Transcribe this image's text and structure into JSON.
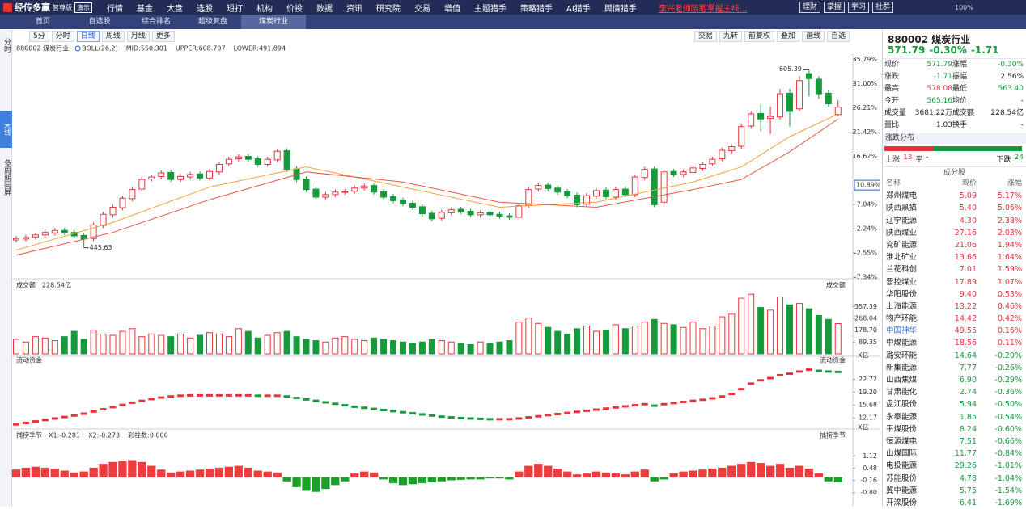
{
  "nav": {
    "logo": "经传多赢",
    "edition": "智尊版",
    "demo": "演示",
    "menu": [
      "行情",
      "基金",
      "大盘",
      "选股",
      "短打",
      "机构",
      "价投",
      "数据",
      "资讯",
      "研究院",
      "交易",
      "增值",
      "主题猎手",
      "策略猎手",
      "AI猎手",
      "舆情猎手"
    ],
    "promo": "李兴老师陪跑掌握主线...",
    "right": [
      "理财",
      "掌握",
      "学习",
      "社群"
    ],
    "zoom": "100%"
  },
  "tabs": [
    "首页",
    "自选股",
    "综合排名",
    "超级复盘",
    "煤炭行业"
  ],
  "side_tabs": [
    "分时",
    "K线",
    "多周期同屏"
  ],
  "toolbar": {
    "left": [
      "5分",
      "分时",
      "日线",
      "周线",
      "月线",
      "更多"
    ],
    "right": [
      "交易",
      "九转",
      "前复权",
      "叠加",
      "画线",
      "自选"
    ]
  },
  "chart_data": [
    {
      "type": "candlestick",
      "title": "880002 煤炭行业",
      "indicator": "BOLL(26,2)",
      "legend": [
        {
          "text": "MID:550.301",
          "color": "#333333"
        },
        {
          "text": "UPPER:608.707",
          "color": "#f08a00"
        },
        {
          "text": "LOWER:491.894",
          "color": "#e01fd0"
        }
      ],
      "up_color": "#e8333a",
      "down_color": "#169a3c",
      "open": [
        0.0,
        0.2,
        0.6,
        1.0,
        1.4,
        1.9,
        1.5,
        0.9,
        0.3,
        2.9,
        5.0,
        6.4,
        8.2,
        10.1,
        12.1,
        12.6,
        13.4,
        12.0,
        12.5,
        13.1,
        12.3,
        13.5,
        15.1,
        16.1,
        16.6,
        16.1,
        15.0,
        15.9,
        17.7,
        14.1,
        12.1,
        10.1,
        8.5,
        9.0,
        9.5,
        9.7,
        10.3,
        10.8,
        9.6,
        8.6,
        7.9,
        7.3,
        6.6,
        5.3,
        4.3,
        5.4,
        6.1,
        5.7,
        5.0,
        5.5,
        5.1,
        4.8,
        4.5,
        6.9,
        10.1,
        10.9,
        10.3,
        9.6,
        8.9,
        7.1,
        8.7,
        9.9,
        8.5,
        10.1,
        9.0,
        12.4,
        14.1,
        7.5,
        13.6,
        13.0,
        13.4,
        14.2,
        15.1,
        16.1,
        17.7,
        18.6,
        22.6,
        25.1,
        24.1,
        24.4,
        29.1,
        26.0,
        33.0,
        31.9,
        29.1,
        24.87
      ],
      "high": [
        0.8,
        1.0,
        1.5,
        2.0,
        2.4,
        2.4,
        2.0,
        1.4,
        3.5,
        5.6,
        7.0,
        8.8,
        10.5,
        12.5,
        13.0,
        13.8,
        13.9,
        13.1,
        13.5,
        13.6,
        14.1,
        15.5,
        16.5,
        17.0,
        17.1,
        16.6,
        16.5,
        18.1,
        18.2,
        14.6,
        12.6,
        10.6,
        9.5,
        10.0,
        10.1,
        10.8,
        11.2,
        11.3,
        10.1,
        9.1,
        8.4,
        7.8,
        7.1,
        5.8,
        6.0,
        6.5,
        6.6,
        6.2,
        5.9,
        6.0,
        5.6,
        5.3,
        7.3,
        10.5,
        11.3,
        11.4,
        10.8,
        10.1,
        9.4,
        9.3,
        10.3,
        10.4,
        10.5,
        10.6,
        13.0,
        14.5,
        14.6,
        14.0,
        14.1,
        14.0,
        14.8,
        15.5,
        16.5,
        18.3,
        19.0,
        23.0,
        25.5,
        27.0,
        26.5,
        30.0,
        30.0,
        32.5,
        33.76,
        32.5,
        29.6,
        27.72
      ],
      "low": [
        -0.5,
        -0.3,
        0.1,
        0.5,
        0.9,
        1.0,
        0.3,
        -1.54,
        -0.2,
        2.4,
        4.5,
        5.9,
        7.7,
        9.6,
        11.6,
        12.1,
        11.5,
        11.5,
        12.0,
        11.8,
        11.8,
        13.0,
        14.6,
        15.6,
        15.5,
        14.5,
        14.5,
        15.4,
        13.5,
        11.5,
        9.5,
        8.0,
        8.0,
        8.5,
        9.0,
        9.2,
        9.8,
        9.0,
        8.0,
        7.3,
        6.7,
        6.0,
        4.7,
        3.7,
        3.8,
        4.9,
        5.1,
        4.5,
        4.5,
        4.5,
        4.2,
        4.0,
        4.0,
        6.4,
        9.6,
        9.7,
        9.0,
        8.3,
        6.5,
        6.6,
        8.2,
        8.1,
        8.0,
        8.5,
        8.5,
        11.9,
        6.5,
        7.0,
        12.5,
        12.5,
        12.9,
        13.7,
        14.6,
        15.6,
        17.2,
        18.1,
        22.1,
        21.5,
        21.0,
        23.9,
        22.5,
        25.5,
        28.5,
        28.0,
        26.5,
        24.48
      ],
      "close": [
        0.3,
        0.5,
        1.0,
        1.5,
        1.9,
        1.5,
        0.8,
        0.2,
        3.0,
        5.1,
        6.5,
        8.3,
        10.0,
        12.0,
        12.5,
        13.3,
        12.0,
        12.6,
        13.0,
        12.3,
        13.6,
        15.0,
        16.0,
        16.5,
        16.0,
        15.0,
        16.0,
        17.6,
        14.0,
        12.0,
        10.0,
        8.5,
        9.0,
        9.5,
        9.6,
        10.3,
        10.7,
        9.5,
        8.5,
        7.8,
        7.2,
        6.5,
        5.2,
        4.2,
        5.5,
        6.0,
        5.6,
        5.0,
        5.4,
        5.0,
        4.7,
        4.5,
        6.8,
        10.0,
        10.8,
        10.2,
        9.5,
        8.8,
        7.0,
        8.8,
        9.8,
        8.6,
        10.0,
        9.0,
        12.5,
        14.0,
        7.0,
        13.5,
        13.0,
        13.5,
        14.3,
        15.0,
        16.0,
        17.8,
        18.5,
        22.5,
        25.0,
        24.0,
        24.5,
        29.0,
        25.5,
        31.6,
        32.0,
        29.0,
        27.0,
        26.33
      ],
      "overlays": [
        {
          "color": "#f2a23a",
          "x": [
            0,
            10,
            20,
            30,
            40,
            50,
            60,
            70,
            75,
            80,
            85
          ],
          "values": [
            -2.0,
            3.5,
            10.5,
            14.5,
            10.5,
            6.5,
            7.5,
            11.5,
            14.5,
            20.5,
            25.0
          ]
        },
        {
          "color": "#e8574a",
          "x": [
            0,
            10,
            20,
            30,
            40,
            50,
            60,
            70,
            75,
            80,
            85
          ],
          "values": [
            -3.0,
            1.5,
            8.0,
            13.5,
            11.5,
            7.5,
            6.5,
            10.0,
            12.0,
            17.5,
            24.0
          ]
        }
      ],
      "annotations": [
        "605.39",
        "445.63"
      ],
      "cursor": {
        "value": 10.89,
        "label": "10.89%"
      },
      "ylim": [
        -7.68,
        36.7
      ],
      "yticks": [
        {
          "value": 35.79,
          "label": "35.79%"
        },
        {
          "value": 31.0,
          "label": "31.00%"
        },
        {
          "value": 26.21,
          "label": "26.21%"
        },
        {
          "value": 21.42,
          "label": "21.42%"
        },
        {
          "value": 16.62,
          "label": "16.62%"
        },
        {
          "value": 7.04,
          "label": "7.04%"
        },
        {
          "value": 2.24,
          "label": "2.24%"
        },
        {
          "value": -2.55,
          "label": "-2.55%"
        },
        {
          "value": -7.34,
          "label": "-7.34%"
        }
      ]
    },
    {
      "type": "bar",
      "title": "成交额",
      "subtitle": "228.54亿",
      "unit": "X亿",
      "values": [
        110,
        90,
        130,
        120,
        100,
        130,
        170,
        110,
        180,
        150,
        140,
        170,
        190,
        130,
        150,
        140,
        130,
        150,
        120,
        140,
        160,
        150,
        130,
        190,
        170,
        120,
        140,
        160,
        170,
        130,
        110,
        100,
        90,
        120,
        130,
        110,
        100,
        120,
        110,
        100,
        90,
        80,
        90,
        110,
        100,
        90,
        80,
        70,
        90,
        80,
        90,
        100,
        240,
        270,
        230,
        200,
        170,
        150,
        190,
        210,
        170,
        180,
        220,
        190,
        210,
        240,
        260,
        230,
        220,
        200,
        240,
        190,
        210,
        280,
        300,
        420,
        450,
        350,
        330,
        430,
        370,
        380,
        340,
        290,
        260,
        228.54
      ],
      "ylim": [
        0,
        524
      ],
      "yticks": [
        357.39,
        268.04,
        {
          "value": 178.7,
          "label": "178.70"
        },
        89.35
      ]
    },
    {
      "type": "line",
      "title": "流动资金",
      "unit": "X亿",
      "values": [
        10.4,
        10.8,
        11.2,
        11.6,
        12.0,
        12.4,
        12.8,
        13.3,
        13.9,
        14.5,
        15.1,
        15.7,
        16.3,
        16.8,
        17.3,
        17.7,
        18.0,
        18.2,
        18.3,
        18.3,
        18.3,
        18.3,
        18.3,
        18.3,
        18.3,
        18.2,
        18.2,
        18.2,
        18.0,
        17.6,
        17.2,
        16.8,
        16.4,
        16.0,
        15.6,
        15.2,
        14.9,
        14.6,
        14.3,
        14.0,
        13.7,
        13.4,
        13.1,
        12.8,
        12.5,
        12.3,
        12.1,
        12.0,
        11.9,
        11.8,
        11.8,
        11.8,
        12.0,
        12.3,
        12.6,
        12.9,
        13.2,
        13.5,
        13.8,
        14.1,
        14.4,
        14.7,
        15.0,
        15.3,
        15.6,
        15.9,
        15.5,
        15.9,
        16.2,
        16.5,
        16.8,
        17.1,
        17.5,
        18.0,
        18.7,
        20.0,
        21.5,
        22.4,
        23.0,
        23.8,
        24.2,
        24.8,
        25.3,
        25.0,
        24.8,
        24.7
      ],
      "up_color": "#e8333a",
      "down_color": "#169a3c",
      "ylim": [
        10.0,
        27.2
      ],
      "yticks": [
        22.72,
        {
          "value": 19.2,
          "label": "19.20"
        },
        15.68,
        12.17
      ]
    },
    {
      "type": "bar",
      "title": "捕捞季节",
      "legend": [
        {
          "text": "X1:-0.281",
          "color": "#f08a00"
        },
        {
          "text": "X2:-0.273",
          "color": "#e01fd0"
        },
        {
          "text": "彩柱数:0.000",
          "color": "#169a3c"
        }
      ],
      "up_color": "#ef3b3b",
      "down_color": "#1aa12a",
      "values": [
        0.4,
        0.5,
        0.55,
        0.5,
        0.45,
        0.35,
        0.25,
        0.3,
        0.5,
        0.7,
        0.8,
        0.85,
        0.9,
        0.8,
        0.6,
        0.4,
        0.25,
        0.3,
        0.35,
        0.4,
        0.45,
        0.5,
        0.55,
        0.6,
        0.5,
        0.35,
        0.3,
        0.25,
        -0.2,
        -0.5,
        -0.7,
        -0.75,
        -0.6,
        -0.4,
        -0.2,
        0.2,
        0.3,
        0.25,
        -0.1,
        -0.3,
        -0.4,
        -0.35,
        -0.3,
        -0.25,
        -0.2,
        -0.15,
        -0.12,
        -0.1,
        -0.1,
        -0.05,
        -0.05,
        -0.1,
        0.3,
        0.6,
        0.7,
        0.6,
        0.45,
        0.3,
        0.15,
        0.2,
        0.3,
        0.25,
        0.2,
        0.15,
        0.3,
        0.4,
        -0.2,
        -0.1,
        0.2,
        0.3,
        0.35,
        0.4,
        0.45,
        0.5,
        0.6,
        0.7,
        0.8,
        0.75,
        0.6,
        0.7,
        0.5,
        0.6,
        0.45,
        0.2,
        -0.2,
        -0.25
      ],
      "ylim": [
        -1.32,
        2.07
      ],
      "yticks": [
        1.12,
        0.48,
        -0.16,
        {
          "value": -0.8,
          "label": "-0.80"
        }
      ]
    }
  ],
  "quote": {
    "code": "880002 煤炭行业",
    "price": "571.79",
    "change_pct": "-0.30%",
    "change": "-1.71",
    "rows": [
      [
        "现价",
        "571.79",
        "涨幅",
        "-0.30%"
      ],
      [
        "涨跌",
        "-1.71",
        "振幅",
        "2.56%"
      ],
      [
        "最高",
        "578.08",
        "最低",
        "563.40"
      ],
      [
        "今开",
        "565.16",
        "均价",
        "-"
      ],
      [
        "成交量",
        "3681.22万",
        "成交额",
        "228.54亿"
      ],
      [
        "量比",
        "1.03",
        "换手",
        "-"
      ]
    ],
    "dist_title": "涨跌分布",
    "up_label": "上涨",
    "up": 13,
    "flat_label": "平",
    "flat": "-",
    "down_label": "下跌",
    "down": 24
  },
  "constituents": {
    "title": "成分股",
    "columns": [
      "名称",
      "现价",
      "涨幅"
    ],
    "rows": [
      [
        "郑州煤电",
        "5.09",
        "5.17%"
      ],
      [
        "陕西黑猫",
        "5.40",
        "5.06%"
      ],
      [
        "辽宁能源",
        "4.30",
        "2.38%"
      ],
      [
        "陕西煤业",
        "27.16",
        "2.03%"
      ],
      [
        "兖矿能源",
        "21.06",
        "1.94%"
      ],
      [
        "淮北矿业",
        "13.66",
        "1.64%"
      ],
      [
        "兰花科创",
        "7.01",
        "1.59%"
      ],
      [
        "晋控煤业",
        "17.89",
        "1.07%"
      ],
      [
        "华阳股份",
        "9.40",
        "0.53%"
      ],
      [
        "上海能源",
        "13.22",
        "0.46%"
      ],
      [
        "物产环能",
        "14.42",
        "0.42%"
      ],
      [
        "中国神华",
        "49.55",
        "0.16%"
      ],
      [
        "中煤能源",
        "18.56",
        "0.11%"
      ],
      [
        "潞安环能",
        "14.64",
        "-0.20%"
      ],
      [
        "新集能源",
        "7.77",
        "-0.26%"
      ],
      [
        "山西焦煤",
        "6.90",
        "-0.29%"
      ],
      [
        "甘肃能化",
        "2.74",
        "-0.36%"
      ],
      [
        "盘江股份",
        "5.94",
        "-0.50%"
      ],
      [
        "永泰能源",
        "1.85",
        "-0.54%"
      ],
      [
        "平煤股份",
        "8.24",
        "-0.60%"
      ],
      [
        "恒源煤电",
        "7.51",
        "-0.66%"
      ],
      [
        "山煤国际",
        "11.77",
        "-0.84%"
      ],
      [
        "电投能源",
        "29.26",
        "-1.01%"
      ],
      [
        "苏能股份",
        "4.78",
        "-1.04%"
      ],
      [
        "冀中能源",
        "5.75",
        "-1.54%"
      ],
      [
        "开滦股份",
        "6.41",
        "-1.69%"
      ]
    ]
  }
}
